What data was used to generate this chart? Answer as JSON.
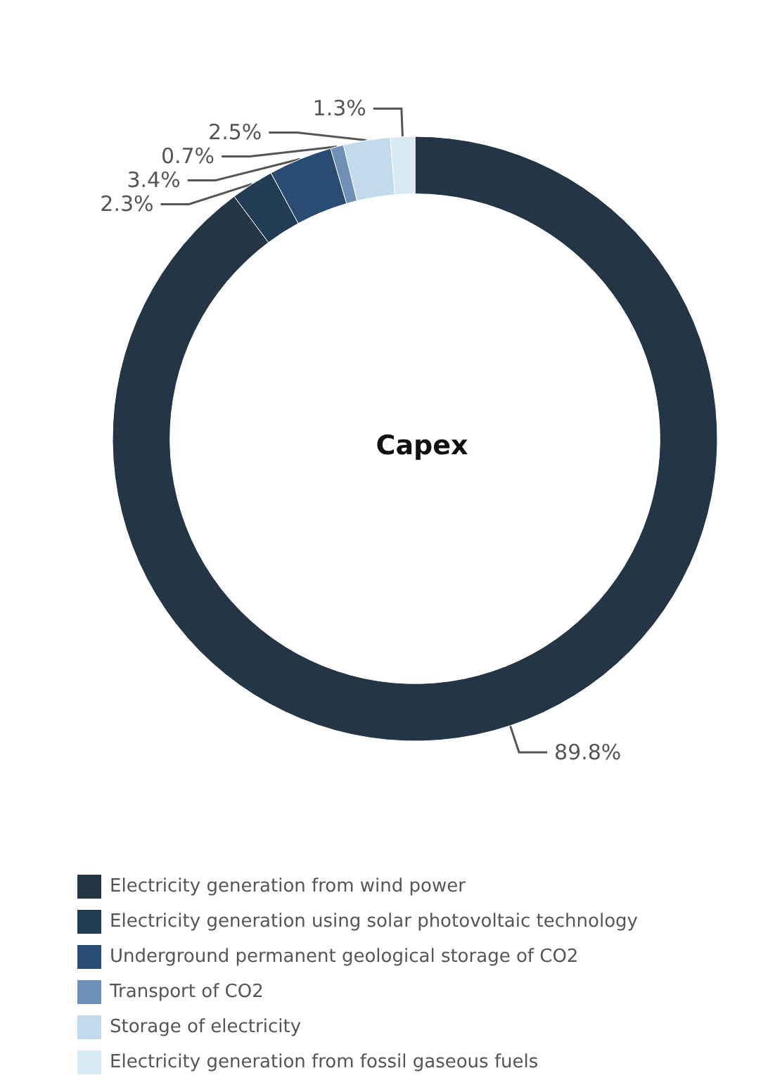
{
  "chart_data": {
    "type": "donut",
    "title": "Capex",
    "categories": [
      "Electricity generation from wind power",
      "Electricity generation using solar photovoltaic technology",
      "Underground permanent geological storage of CO2",
      "Transport of CO2",
      "Storage of electricity",
      "Electricity generation from fossil gaseous fuels"
    ],
    "values": [
      89.8,
      2.3,
      3.4,
      0.7,
      2.5,
      1.3
    ],
    "colors": [
      "#243546",
      "#233c55",
      "#2b4c72",
      "#6f90b6",
      "#c3d9ec",
      "#d7e9f5"
    ],
    "value_labels": [
      "89.8%",
      "2.3%",
      "3.4%",
      "0.7%",
      "2.5%",
      "1.3%"
    ],
    "legend": "bottom"
  }
}
